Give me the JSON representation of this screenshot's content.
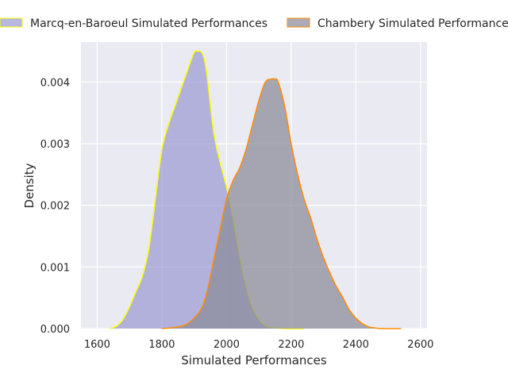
{
  "chart_data": {
    "type": "area",
    "title": "",
    "xlabel": "Simulated Performances",
    "ylabel": "Density",
    "xlim": [
      1550,
      2620
    ],
    "ylim": [
      0,
      0.00465
    ],
    "x_ticks": [
      1600,
      1800,
      2000,
      2200,
      2400,
      2600
    ],
    "x_tick_labels": [
      "1600",
      "1800",
      "2000",
      "2200",
      "2400",
      "2600"
    ],
    "y_ticks": [
      0,
      0.001,
      0.002,
      0.003,
      0.004
    ],
    "y_tick_labels": [
      "0.000",
      "0.001",
      "0.002",
      "0.003",
      "0.004"
    ],
    "grid": true,
    "legend_position": "top",
    "series": [
      {
        "name": "Marcq-en-Baroeul Simulated Performances",
        "fill_color": "#9b9bd2",
        "line_color": "#ffff00",
        "x": [
          1640,
          1660,
          1680,
          1700,
          1720,
          1740,
          1760,
          1780,
          1800,
          1820,
          1840,
          1860,
          1880,
          1900,
          1910,
          1920,
          1930,
          1940,
          1960,
          1980,
          2000,
          2020,
          2040,
          2060,
          2080,
          2100,
          2120,
          2140,
          2160,
          2180,
          2200,
          2220,
          2240
        ],
        "y": [
          0.0,
          4e-05,
          0.00015,
          0.00035,
          0.0006,
          0.00085,
          0.0013,
          0.0021,
          0.0029,
          0.0033,
          0.0036,
          0.0039,
          0.0042,
          0.00448,
          0.0045,
          0.0045,
          0.0044,
          0.0041,
          0.0032,
          0.0027,
          0.0023,
          0.0018,
          0.0012,
          0.0007,
          0.00035,
          0.00015,
          5e-05,
          2e-05,
          1e-05,
          0.0,
          0.0,
          0.0,
          0.0
        ]
      },
      {
        "name": "Chambery Simulated Performances",
        "fill_color": "#8a8a99",
        "line_color": "#ff8c00",
        "x": [
          1800,
          1840,
          1880,
          1920,
          1940,
          1960,
          1980,
          2000,
          2020,
          2040,
          2060,
          2080,
          2100,
          2120,
          2140,
          2150,
          2160,
          2180,
          2200,
          2220,
          2240,
          2260,
          2280,
          2300,
          2320,
          2340,
          2360,
          2380,
          2400,
          2420,
          2440,
          2460,
          2480,
          2500,
          2540
        ],
        "y": [
          0.0,
          2e-05,
          8e-05,
          0.0003,
          0.0006,
          0.0011,
          0.0016,
          0.0021,
          0.0024,
          0.0026,
          0.0029,
          0.0033,
          0.0037,
          0.004,
          0.00405,
          0.00405,
          0.004,
          0.0036,
          0.003,
          0.0025,
          0.0021,
          0.0018,
          0.00145,
          0.00115,
          0.0009,
          0.00068,
          0.0005,
          0.0003,
          0.00017,
          8e-05,
          3e-05,
          1e-05,
          0.0,
          0.0,
          0.0
        ]
      }
    ]
  }
}
